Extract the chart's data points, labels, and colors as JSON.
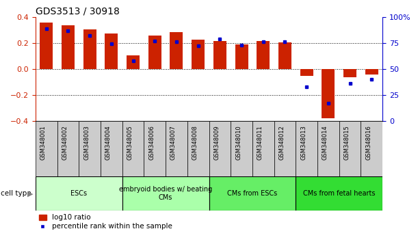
{
  "title": "GDS3513 / 30918",
  "samples": [
    "GSM348001",
    "GSM348002",
    "GSM348003",
    "GSM348004",
    "GSM348005",
    "GSM348006",
    "GSM348007",
    "GSM348008",
    "GSM348009",
    "GSM348010",
    "GSM348011",
    "GSM348012",
    "GSM348013",
    "GSM348014",
    "GSM348015",
    "GSM348016"
  ],
  "log10_ratio": [
    0.355,
    0.335,
    0.305,
    0.275,
    0.105,
    0.255,
    0.285,
    0.225,
    0.215,
    0.19,
    0.215,
    0.205,
    -0.055,
    -0.38,
    -0.065,
    -0.045
  ],
  "percentile_rank": [
    89,
    87,
    82,
    74,
    58,
    77,
    76,
    72,
    79,
    73,
    76,
    76,
    33,
    17,
    36,
    40
  ],
  "bar_color": "#cc2200",
  "dot_color": "#0000cc",
  "ylim_left": [
    -0.4,
    0.4
  ],
  "ylim_right": [
    0,
    100
  ],
  "yticks_left": [
    -0.4,
    -0.2,
    0.0,
    0.2,
    0.4
  ],
  "yticks_right": [
    0,
    25,
    50,
    75,
    100
  ],
  "ytick_labels_right": [
    "0",
    "25",
    "50",
    "75",
    "100%"
  ],
  "grid_values": [
    -0.2,
    0.0,
    0.2
  ],
  "cell_types": [
    {
      "label": "ESCs",
      "start": 0,
      "end": 4,
      "color": "#ccffcc"
    },
    {
      "label": "embryoid bodies w/ beating\nCMs",
      "start": 4,
      "end": 8,
      "color": "#aaffaa"
    },
    {
      "label": "CMs from ESCs",
      "start": 8,
      "end": 12,
      "color": "#66ee66"
    },
    {
      "label": "CMs from fetal hearts",
      "start": 12,
      "end": 16,
      "color": "#33dd33"
    }
  ],
  "legend_bar_color": "#cc2200",
  "legend_dot_color": "#0000cc",
  "legend_bar_label": "log10 ratio",
  "legend_dot_label": "percentile rank within the sample",
  "cell_type_label": "cell type",
  "bar_width": 0.6,
  "sample_box_color": "#cccccc",
  "spine_color": "#000000",
  "left_tick_color": "#cc2200",
  "right_tick_color": "#0000cc"
}
